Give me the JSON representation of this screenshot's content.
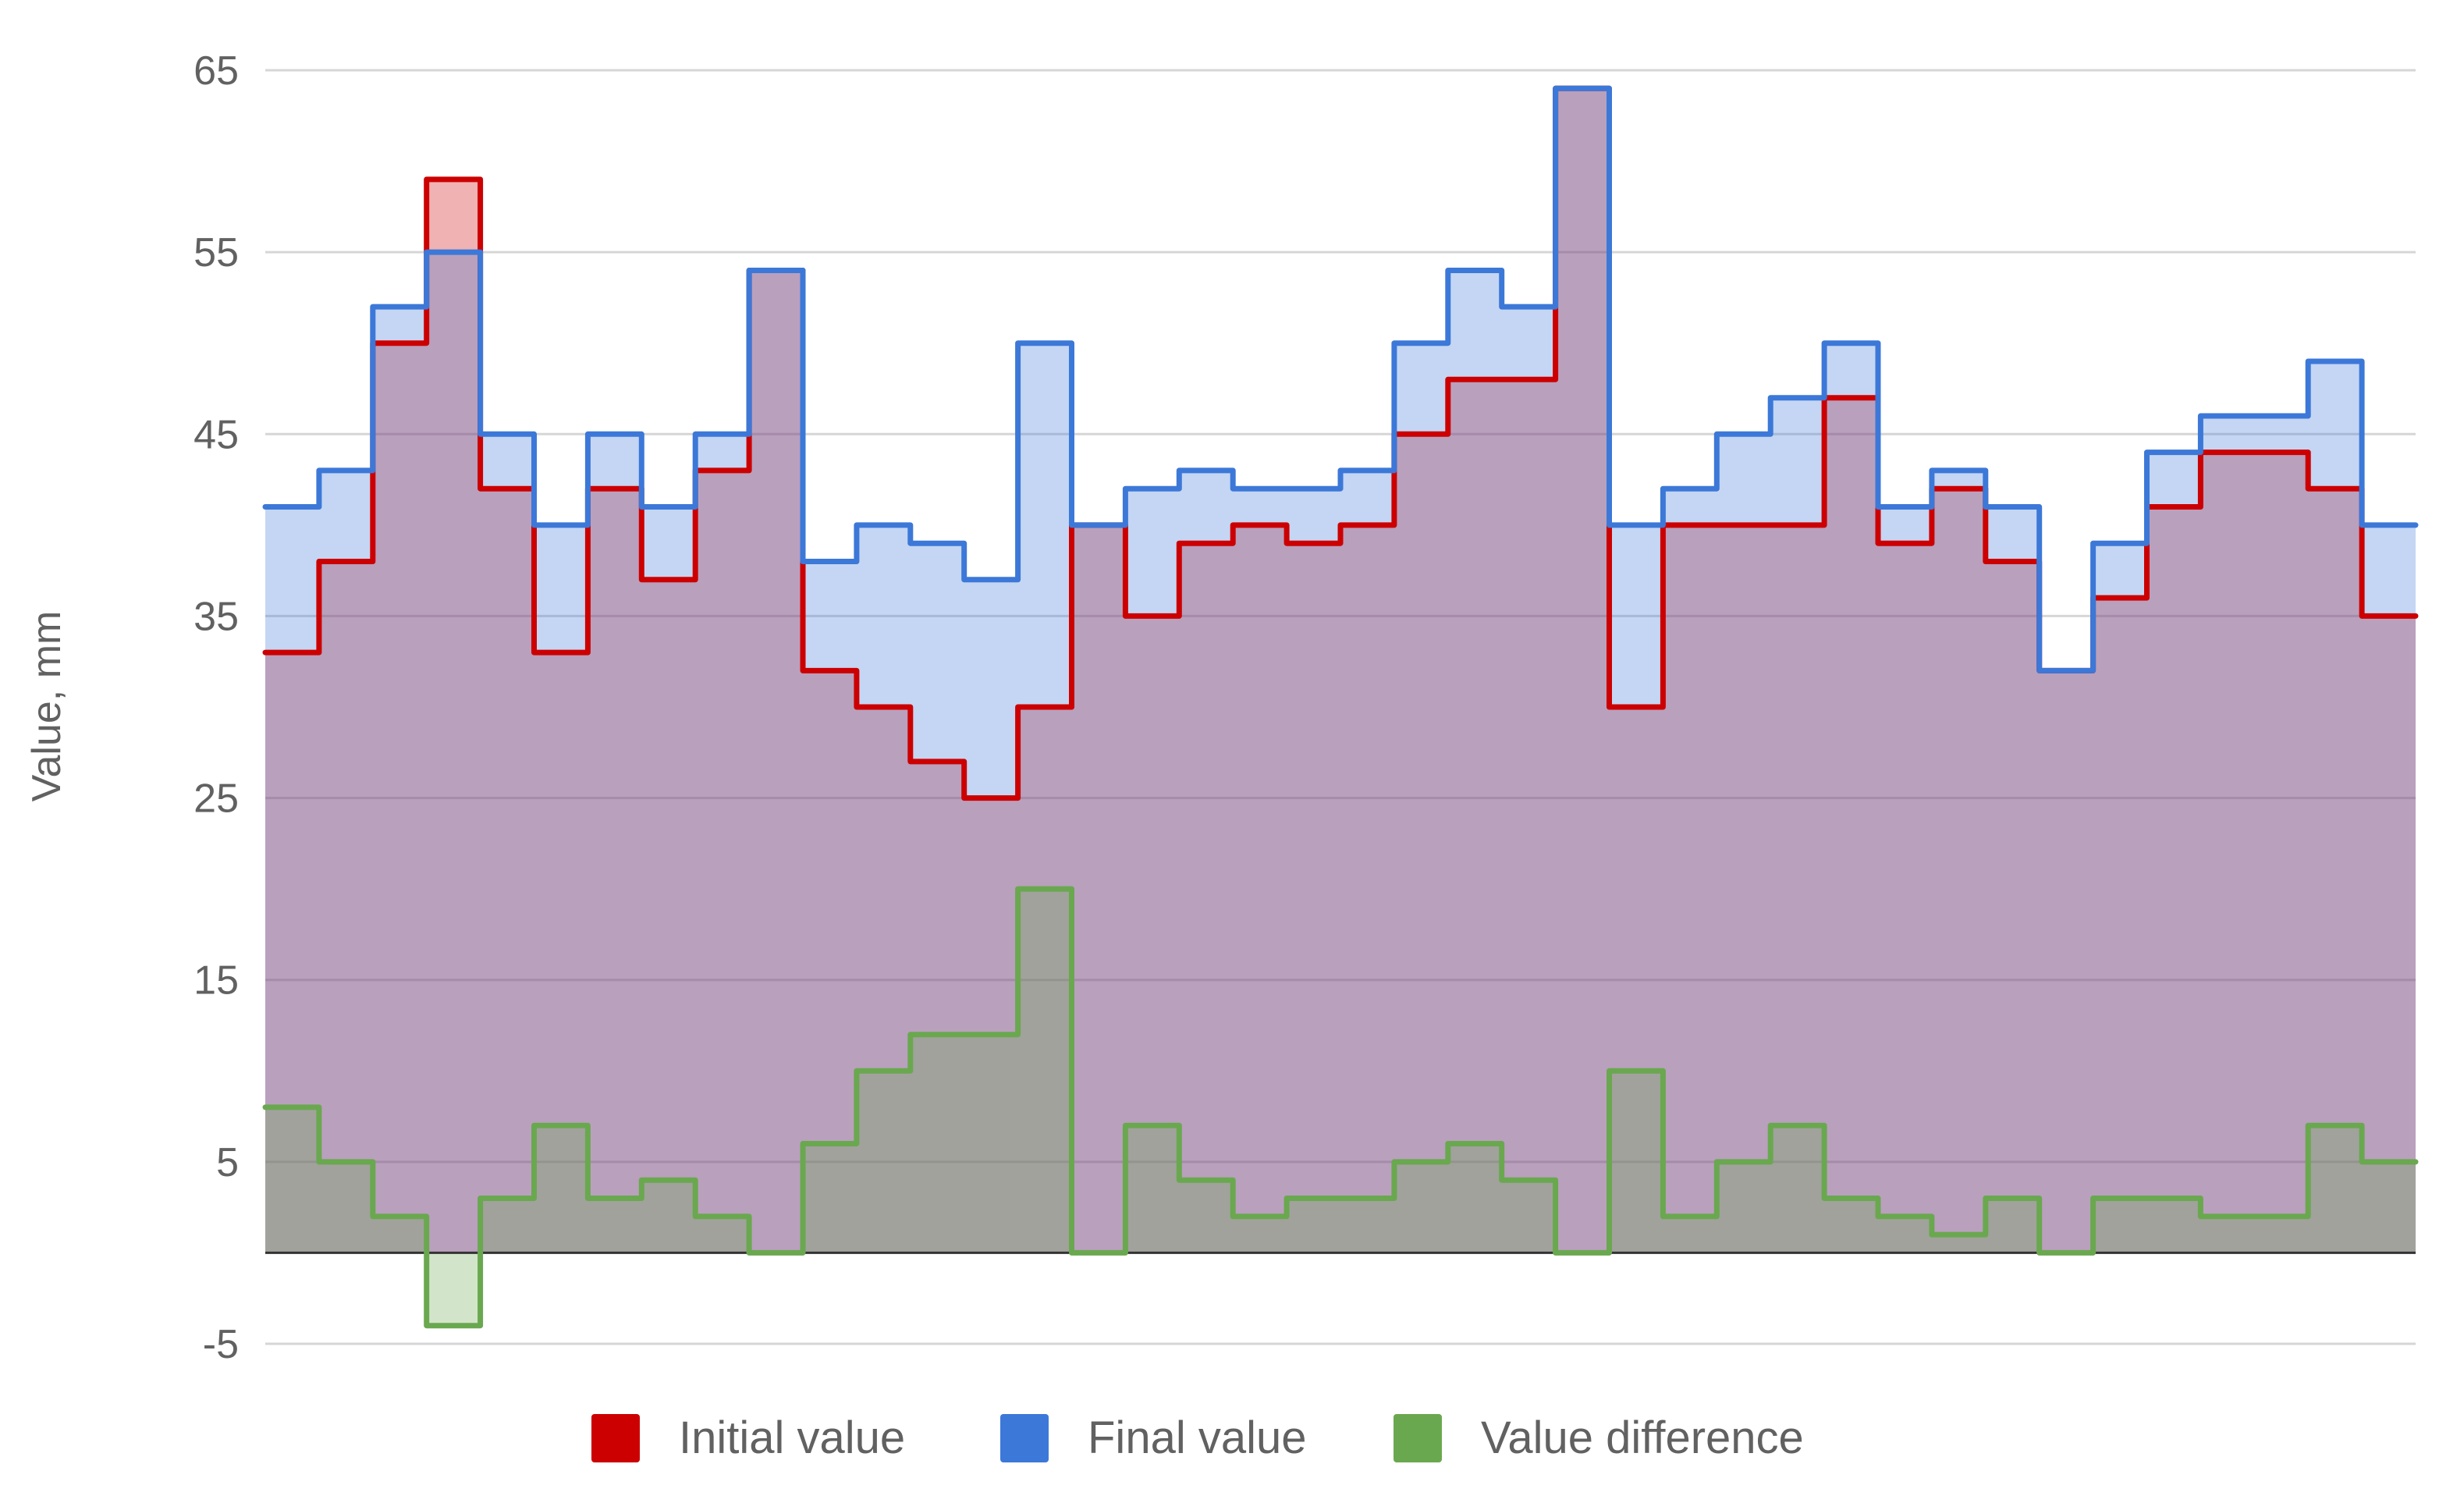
{
  "chart_data": {
    "type": "area",
    "subtype": "stepped",
    "title": "",
    "xlabel": "",
    "ylabel": "Value, mm",
    "ylim": [
      -5,
      65
    ],
    "yticks": [
      65,
      55,
      45,
      35,
      25,
      15,
      5,
      -5
    ],
    "grid": true,
    "legend_position": "bottom",
    "step_count": 40,
    "series": [
      {
        "name": "Initial value",
        "color": "#cc0000",
        "values": [
          33,
          38,
          50,
          59,
          42,
          33,
          42,
          37,
          43,
          54,
          32,
          30,
          27,
          25,
          30,
          40,
          35,
          39,
          40,
          39,
          40,
          45,
          48,
          48,
          64,
          30,
          40,
          40,
          40,
          47,
          39,
          42,
          38,
          32,
          36,
          41,
          44,
          44,
          42,
          35
        ]
      },
      {
        "name": "Final value",
        "color": "#3c78d8",
        "values": [
          41,
          43,
          52,
          55,
          45,
          40,
          45,
          41,
          45,
          54,
          38,
          40,
          39,
          37,
          50,
          40,
          42,
          43,
          42,
          42,
          43,
          50,
          54,
          52,
          64,
          40,
          42,
          45,
          47,
          50,
          41,
          43,
          41,
          32,
          39,
          44,
          46,
          46,
          49,
          40
        ]
      },
      {
        "name": "Value difference",
        "color": "#6aa84f",
        "values": [
          8,
          5,
          2,
          -4,
          3,
          7,
          3,
          4,
          2,
          0,
          6,
          10,
          12,
          12,
          20,
          0,
          7,
          4,
          2,
          3,
          3,
          5,
          6,
          4,
          0,
          10,
          2,
          5,
          7,
          3,
          2,
          1,
          3,
          0,
          3,
          3,
          2,
          2,
          7,
          5
        ]
      }
    ]
  }
}
